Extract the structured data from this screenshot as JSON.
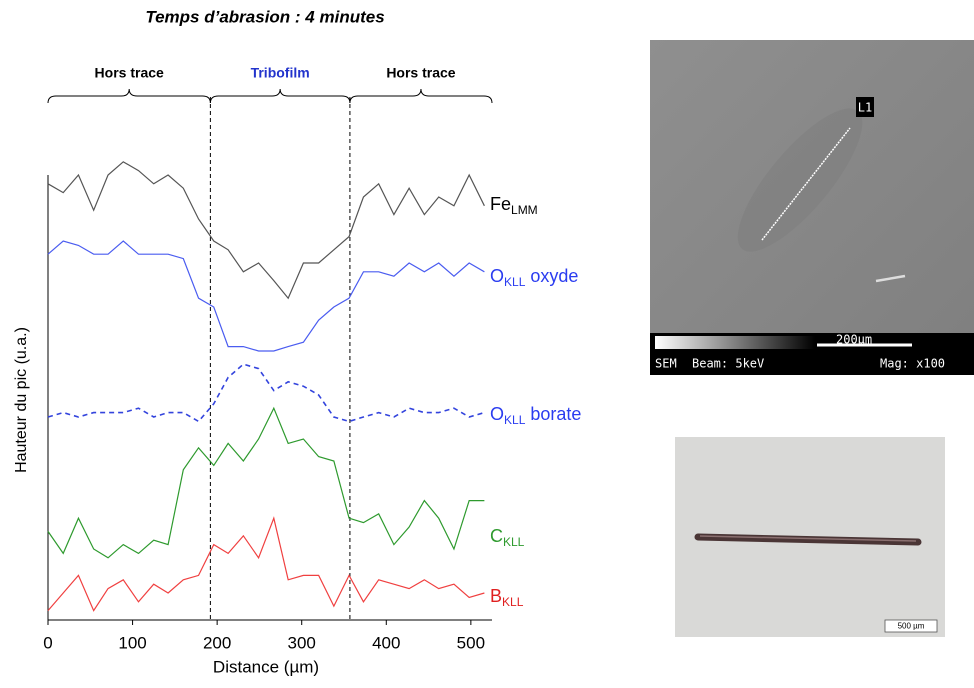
{
  "chart_data": {
    "type": "line",
    "title": "Temps d’abrasion : 4 minutes",
    "x_label": "Distance (µm)",
    "y_label": "Hauteur du pic (u.a.)",
    "x": [
      0,
      18,
      36,
      54,
      71,
      89,
      107,
      125,
      142,
      160,
      178,
      196,
      213,
      231,
      249,
      267,
      284,
      302,
      320,
      338,
      356,
      373,
      391,
      409,
      427,
      445,
      462,
      480,
      498,
      516
    ],
    "xlim": [
      0,
      525
    ],
    "xticks": [
      0,
      100,
      200,
      300,
      400,
      500
    ],
    "ylim": [
      0,
      100
    ],
    "regions": [
      {
        "label": "Hors trace",
        "start": 0,
        "end": 192,
        "color": "#000000"
      },
      {
        "label": "Tribofilm",
        "start": 192,
        "end": 357,
        "color": "#2233cc"
      },
      {
        "label": "Hors trace",
        "start": 357,
        "end": 525,
        "color": "#000000"
      }
    ],
    "series": [
      {
        "name": "Fe",
        "name_sub": "LMM",
        "color": "#555555",
        "label_color": "#000000",
        "dashed": false,
        "values": [
          98,
          96,
          100,
          92,
          100,
          103,
          101,
          98,
          100,
          97,
          90,
          85,
          83,
          78,
          80,
          76,
          72,
          80,
          80,
          83,
          86,
          95,
          98,
          91,
          97,
          91,
          95,
          93,
          100,
          93
        ]
      },
      {
        "name": "O",
        "name_sub": "KLL",
        "name_suffix": " oxyde",
        "color": "#4a5cf0",
        "label_color": "#2a3cf0",
        "dashed": false,
        "values": [
          82,
          85,
          84,
          82,
          82,
          85,
          82,
          82,
          82,
          81,
          72,
          70,
          61,
          61,
          60,
          60,
          61,
          62,
          67,
          70,
          72,
          78,
          78,
          77,
          80,
          78,
          80,
          77,
          80,
          78
        ]
      },
      {
        "name": "O",
        "name_sub": "KLL",
        "name_suffix": " borate",
        "color": "#3344dd",
        "label_color": "#2a3cf0",
        "dashed": true,
        "values": [
          45,
          46,
          45,
          46,
          46,
          46,
          47,
          45,
          46,
          46,
          44,
          48,
          54,
          57,
          56,
          51,
          53,
          52,
          50,
          45,
          44,
          45,
          46,
          45,
          47,
          46,
          46,
          47,
          45,
          46
        ]
      },
      {
        "name": "C",
        "name_sub": "KLL",
        "color": "#2e9a2e",
        "label_color": "#2e9a2e",
        "dashed": false,
        "values": [
          19,
          14,
          22,
          15,
          13,
          16,
          14,
          17,
          16,
          33,
          38,
          34,
          39,
          35,
          40,
          47,
          39,
          40,
          36,
          35,
          22,
          21,
          23,
          16,
          20,
          26,
          22,
          15,
          26,
          26
        ]
      },
      {
        "name": "B",
        "name_sub": "KLL",
        "color": "#f04040",
        "label_color": "#e02020",
        "dashed": false,
        "values": [
          1,
          5,
          9,
          1,
          6,
          8,
          3,
          7,
          5,
          8,
          9,
          16,
          14,
          18,
          13,
          22,
          8,
          9,
          9,
          2,
          9,
          3,
          8,
          7,
          6,
          8,
          6,
          7,
          4,
          5
        ]
      }
    ]
  },
  "images": {
    "sem": {
      "marker": "L1",
      "scale": "200µm",
      "mode": "SEM",
      "beam": "Beam: 5keV",
      "mag": "Mag: x100"
    },
    "optical": {
      "scale": "500 µm"
    }
  }
}
